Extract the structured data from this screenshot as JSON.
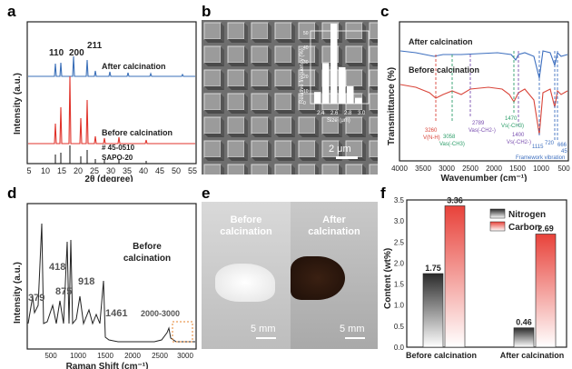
{
  "panel_labels": {
    "a": "a",
    "b": "b",
    "c": "c",
    "d": "d",
    "e": "e",
    "f": "f"
  },
  "colors": {
    "after_xrd": "#3a6fb8",
    "before_xrd": "#e0332b",
    "ref": "#222222",
    "ftir_after": "#3d6fbf",
    "ftir_before": "#d9453a",
    "raman": "#222222",
    "nitrogen_bar": "#3a3a3a",
    "carbon_bar": "#e8423a"
  },
  "xrd": {
    "peaks": [
      "110",
      "200",
      "211"
    ],
    "after_label": "After calcination",
    "before_label": "Before calcination",
    "ref_label_1": "# 45-0510",
    "ref_label_2": "SAPO-20",
    "ylabel": "Intensity (a.u.)",
    "xlabel": "2θ (degree)",
    "xticks": [
      "5",
      "10",
      "15",
      "20",
      "25",
      "30",
      "35",
      "40",
      "45",
      "50",
      "55"
    ]
  },
  "sem": {
    "scale": "2 μm",
    "hist_ylabel": "Relative frequency (%)",
    "hist_xlabel": "Size (μm)",
    "hist_yticks": [
      "50",
      "40",
      "30",
      "20",
      "10",
      "0"
    ],
    "hist_xticks": [
      "2.4",
      "2.6",
      "2.8",
      "3.0"
    ],
    "hist_values": [
      8,
      28,
      55,
      25,
      12,
      4
    ]
  },
  "ftir": {
    "after_label": "After calcination",
    "before_label": "Before calcination",
    "ylabel": "Transmittance (%)",
    "xlabel": "Wavenumber (cm⁻¹)",
    "xticks": [
      "4000",
      "3500",
      "3000",
      "2500",
      "2000",
      "1500",
      "1000",
      "500"
    ],
    "annotations": {
      "a3260": "3260",
      "a3260b": "V(N-H)",
      "a3058": "3058",
      "a3058b": "Vas(-CH3)",
      "a2789": "2789",
      "a2789b": "Vas(-CH2-)",
      "a1470": "1470",
      "a1470b": "Vs(-CH3)",
      "a1400": "1400",
      "a1400b": "Vs(-CH2-)",
      "a1115": "1115",
      "a720": "720",
      "a666": "666",
      "a45": "45",
      "fw": "Framework vibration"
    }
  },
  "raman": {
    "title_1": "Before",
    "title_2": "calcination",
    "peaks": [
      "418",
      "875",
      "918",
      "379",
      "1461"
    ],
    "range_label": "2000-3000",
    "ylabel": "Intensity (a.u.)",
    "xlabel": "Raman Shift (cm⁻¹)",
    "xticks": [
      "500",
      "1000",
      "1500",
      "2000",
      "2500",
      "3000"
    ]
  },
  "photos": {
    "before_1": "Before",
    "before_2": "calcination",
    "after_1": "After",
    "after_2": "calcination",
    "scale_left": "5 mm",
    "scale_right": "5 mm"
  },
  "chart_data": {
    "type": "bar",
    "categories": [
      "Before calcination",
      "After calcination"
    ],
    "series": [
      {
        "name": "Nitrogen",
        "values": [
          1.75,
          0.46
        ]
      },
      {
        "name": "Carbon",
        "values": [
          3.36,
          2.69
        ]
      }
    ],
    "ylabel": "Content (wt%)",
    "ylim": [
      0,
      3.5
    ],
    "yticks": [
      "0.0",
      "0.5",
      "1.0",
      "1.5",
      "2.0",
      "2.5",
      "3.0",
      "3.5"
    ],
    "labels": [
      "1.75",
      "0.46",
      "3.36",
      "2.69"
    ],
    "legend": "top-right"
  }
}
